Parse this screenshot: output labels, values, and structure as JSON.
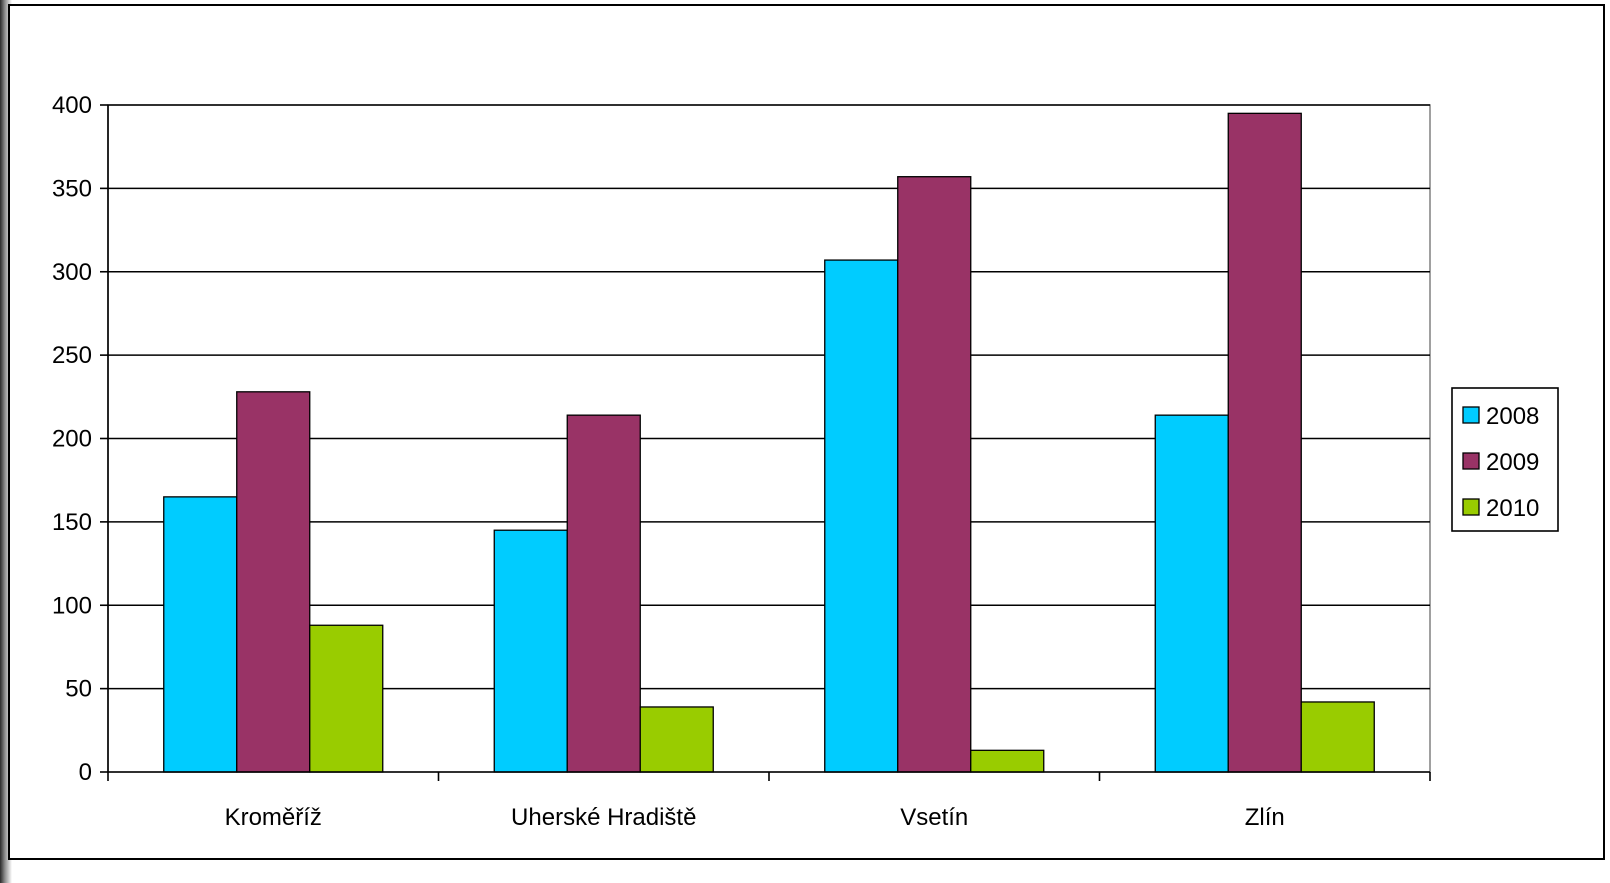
{
  "chart_data": {
    "type": "bar",
    "categories": [
      "Kroměříž",
      "Uherské Hradiště",
      "Vsetín",
      "Zlín"
    ],
    "series": [
      {
        "name": "2008",
        "color": "#00CCFF",
        "values": [
          165,
          145,
          307,
          214
        ]
      },
      {
        "name": "2009",
        "color": "#993366",
        "values": [
          228,
          214,
          357,
          395
        ]
      },
      {
        "name": "2010",
        "color": "#99CC00",
        "values": [
          88,
          39,
          13,
          42
        ]
      }
    ],
    "title": "",
    "xlabel": "",
    "ylabel": "",
    "ylim": [
      0,
      400
    ],
    "yticks": [
      "0",
      "50",
      "100",
      "150",
      "200",
      "250",
      "300",
      "350",
      "400"
    ],
    "grid": true,
    "legend": "right"
  }
}
